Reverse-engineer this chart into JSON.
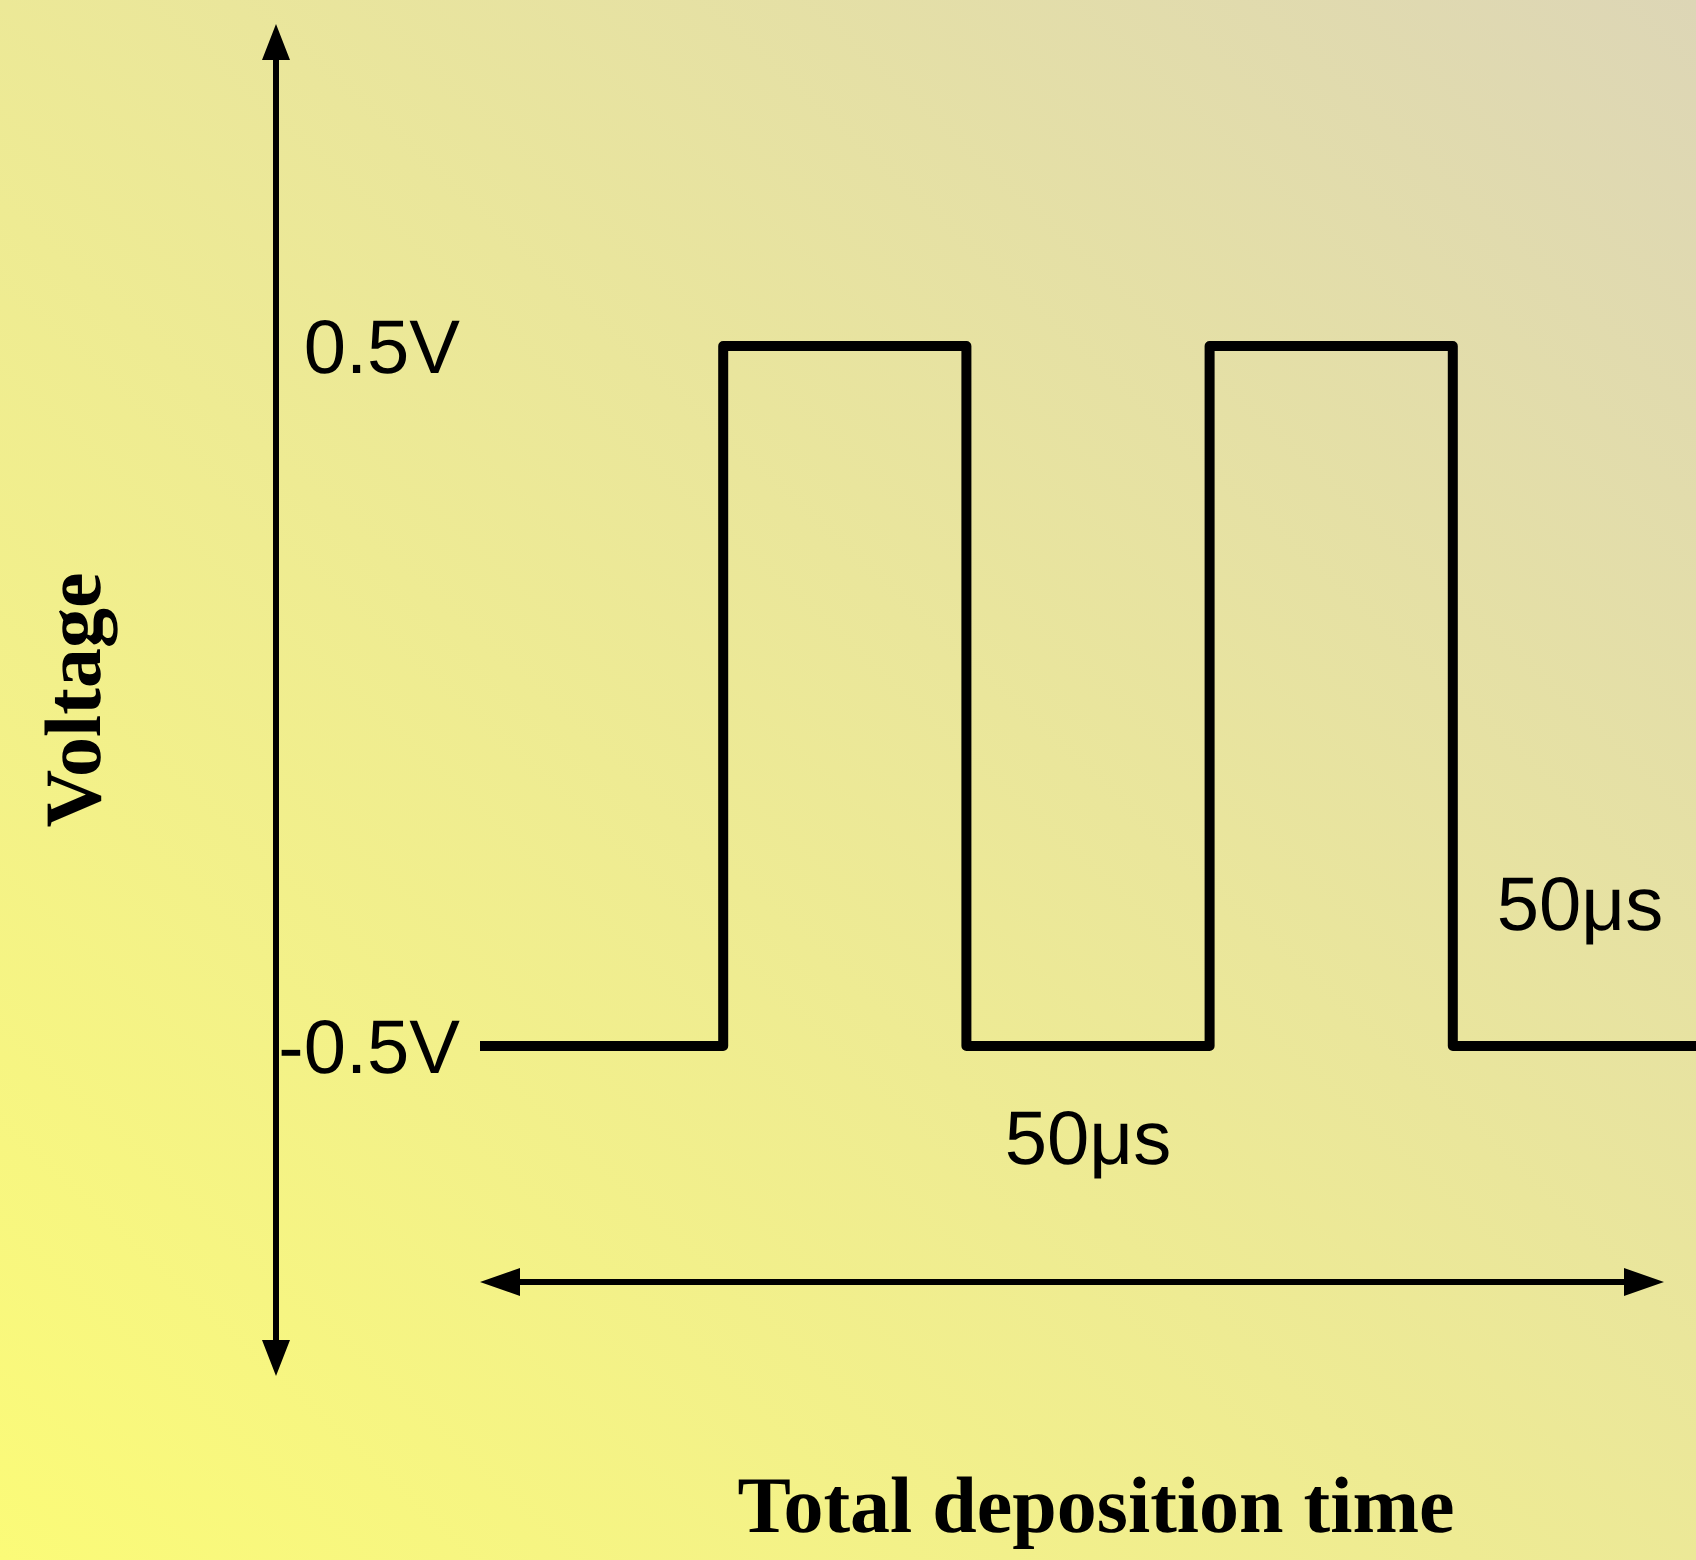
{
  "chart_data": {
    "type": "step",
    "xlabel": "Total deposition time",
    "ylabel": "Voltage",
    "categories": [
      null,
      null,
      null,
      null,
      null,
      null
    ],
    "series": [
      {
        "color": "#000000",
        "values": [
          -0.5,
          0.5,
          -0.5,
          0.5,
          -0.5,
          -0.5
        ]
      }
    ],
    "ylim": [
      -0.5,
      0.5
    ],
    "yticks": [
      {
        "value": 0.5,
        "label": "0.5V"
      },
      {
        "value": -0.5,
        "label": "-0.5V"
      }
    ],
    "annotations": [
      "50μs",
      "50μs"
    ]
  }
}
